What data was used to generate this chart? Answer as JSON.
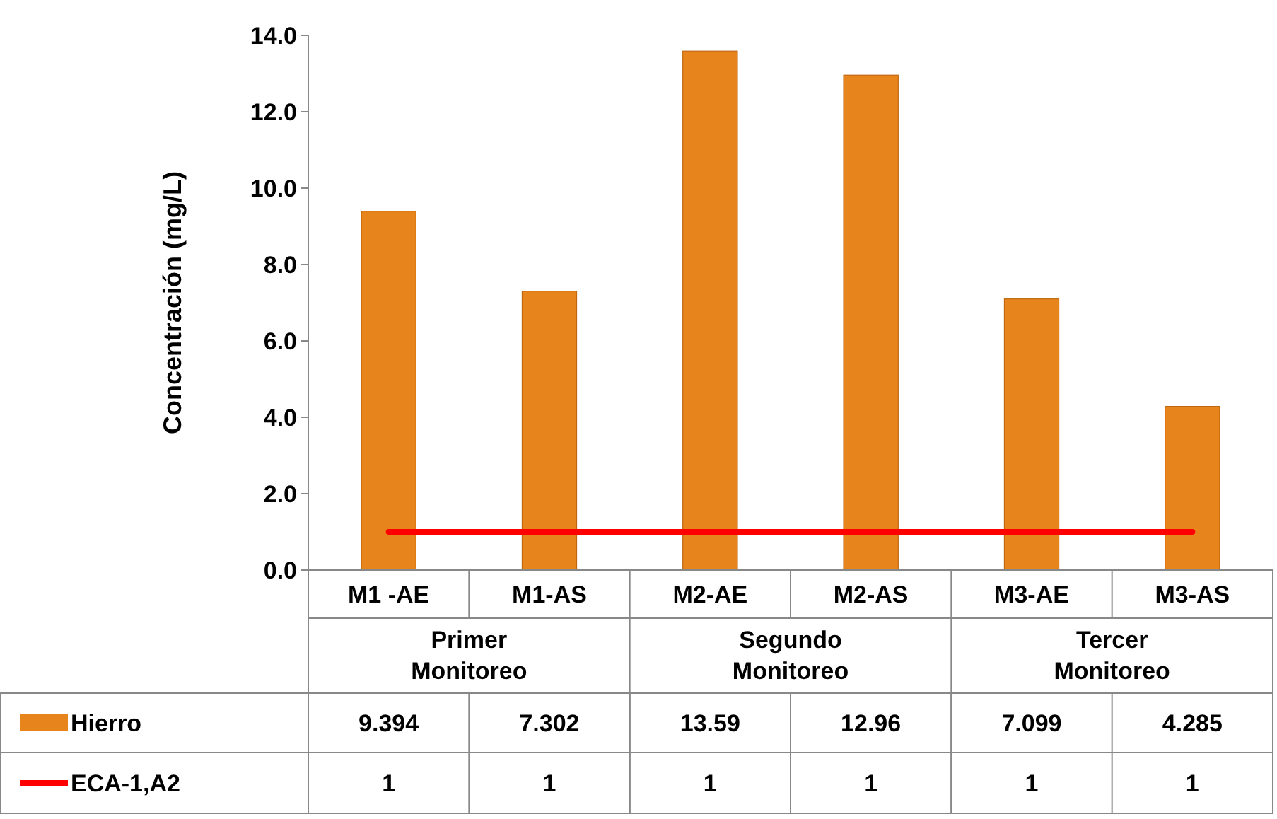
{
  "chart_data": {
    "type": "bar",
    "ylabel": "Concentración (mg/L)",
    "categories": [
      "M1 -AE",
      "M1-AS",
      "M2-AE",
      "M2-AS",
      "M3-AE",
      "M3-AS"
    ],
    "series": [
      {
        "name": "Hierro",
        "color": "#e8841c",
        "values": [
          9.394,
          7.302,
          13.59,
          12.96,
          7.099,
          4.285
        ]
      },
      {
        "name": "ECA-1,A2",
        "type": "line",
        "color": "#ff0000",
        "values": [
          1,
          1,
          1,
          1,
          1,
          1
        ]
      }
    ],
    "annotations": [
      "Primer Monitoreo",
      "Segundo Monitoreo",
      "Tercer Monitoreo"
    ],
    "ylim": [
      0,
      14
    ],
    "yticks": [
      {
        "value": 0,
        "label": "0.0"
      },
      {
        "value": 2,
        "label": "2.0"
      },
      {
        "value": 4,
        "label": "4.0"
      },
      {
        "value": 6,
        "label": "6.0"
      },
      {
        "value": 8,
        "label": "8.0"
      },
      {
        "value": 10,
        "label": "10.0"
      },
      {
        "value": 12,
        "label": "12.0"
      },
      {
        "value": 14,
        "label": "14.0"
      }
    ],
    "data_labels": true,
    "legend": "bottom",
    "grid": false
  }
}
